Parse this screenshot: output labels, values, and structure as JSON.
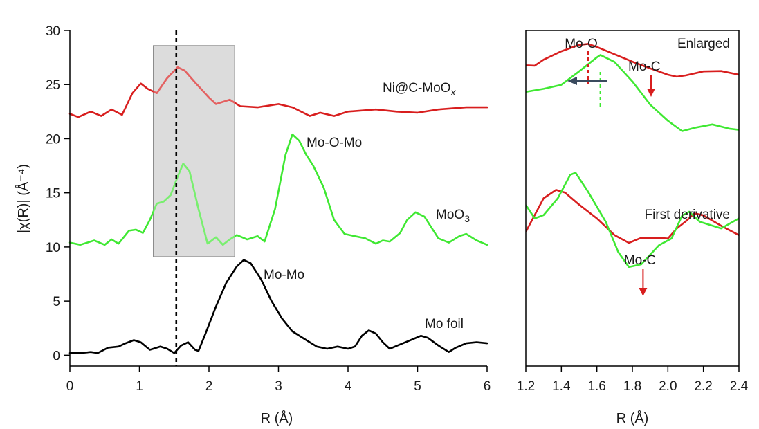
{
  "colors": {
    "red": "#d81e1e",
    "green": "#3fe832",
    "black": "#000000",
    "arrow_blue": "#3a4a5e",
    "shade_fill": "#dcdcdc",
    "shade_stroke": "#8c8c8c"
  },
  "chart_data": [
    {
      "type": "line",
      "panel": "left",
      "xlabel": "R (Å)",
      "ylabel": "|χ(R)| (Å⁻⁴)",
      "xlim": [
        0,
        6
      ],
      "ylim": [
        -1,
        30
      ],
      "xticks": [
        "0",
        "1",
        "2",
        "3",
        "4",
        "5",
        "6"
      ],
      "yticks": [
        "0",
        "5",
        "10",
        "15",
        "20",
        "25",
        "30"
      ],
      "reference_line_x": 1.53,
      "shaded_region": {
        "x": [
          1.2,
          2.37
        ],
        "y": [
          9.1,
          28.6
        ]
      },
      "series": [
        {
          "name": "Ni@C-MoOₓ",
          "color": "red",
          "points": [
            [
              0,
              22.3
            ],
            [
              0.12,
              22.0
            ],
            [
              0.3,
              22.5
            ],
            [
              0.45,
              22.1
            ],
            [
              0.6,
              22.7
            ],
            [
              0.75,
              22.2
            ],
            [
              0.9,
              24.2
            ],
            [
              1.02,
              25.1
            ],
            [
              1.12,
              24.6
            ],
            [
              1.25,
              24.2
            ],
            [
              1.4,
              25.6
            ],
            [
              1.55,
              26.6
            ],
            [
              1.65,
              26.3
            ],
            [
              1.8,
              25.2
            ],
            [
              2.0,
              23.8
            ],
            [
              2.1,
              23.2
            ],
            [
              2.3,
              23.6
            ],
            [
              2.45,
              23.0
            ],
            [
              2.7,
              22.9
            ],
            [
              3.0,
              23.2
            ],
            [
              3.2,
              22.9
            ],
            [
              3.45,
              22.1
            ],
            [
              3.6,
              22.4
            ],
            [
              3.8,
              22.1
            ],
            [
              4.0,
              22.5
            ],
            [
              4.4,
              22.7
            ],
            [
              4.7,
              22.5
            ],
            [
              5.0,
              22.4
            ],
            [
              5.3,
              22.7
            ],
            [
              5.7,
              22.9
            ],
            [
              6.0,
              22.9
            ]
          ]
        },
        {
          "name": "MoO₃",
          "color": "green",
          "points": [
            [
              0,
              10.4
            ],
            [
              0.15,
              10.2
            ],
            [
              0.35,
              10.6
            ],
            [
              0.5,
              10.2
            ],
            [
              0.6,
              10.7
            ],
            [
              0.7,
              10.3
            ],
            [
              0.85,
              11.5
            ],
            [
              0.95,
              11.6
            ],
            [
              1.05,
              11.3
            ],
            [
              1.15,
              12.5
            ],
            [
              1.25,
              14.0
            ],
            [
              1.35,
              14.2
            ],
            [
              1.45,
              14.8
            ],
            [
              1.55,
              16.5
            ],
            [
              1.63,
              17.7
            ],
            [
              1.72,
              17.0
            ],
            [
              1.85,
              13.5
            ],
            [
              1.98,
              10.3
            ],
            [
              2.1,
              10.9
            ],
            [
              2.2,
              10.2
            ],
            [
              2.3,
              10.7
            ],
            [
              2.4,
              11.1
            ],
            [
              2.55,
              10.7
            ],
            [
              2.7,
              11.0
            ],
            [
              2.8,
              10.5
            ],
            [
              2.95,
              13.5
            ],
            [
              3.1,
              18.5
            ],
            [
              3.2,
              20.4
            ],
            [
              3.3,
              19.8
            ],
            [
              3.4,
              18.5
            ],
            [
              3.5,
              17.5
            ],
            [
              3.65,
              15.5
            ],
            [
              3.8,
              12.5
            ],
            [
              3.95,
              11.2
            ],
            [
              4.1,
              11.0
            ],
            [
              4.25,
              10.8
            ],
            [
              4.4,
              10.3
            ],
            [
              4.5,
              10.6
            ],
            [
              4.6,
              10.5
            ],
            [
              4.75,
              11.3
            ],
            [
              4.85,
              12.5
            ],
            [
              4.97,
              13.2
            ],
            [
              5.1,
              12.8
            ],
            [
              5.3,
              10.8
            ],
            [
              5.45,
              10.4
            ],
            [
              5.6,
              11.0
            ],
            [
              5.7,
              11.2
            ],
            [
              5.85,
              10.6
            ],
            [
              6.0,
              10.2
            ]
          ]
        },
        {
          "name": "Mo foil",
          "color": "black",
          "points": [
            [
              0,
              0.2
            ],
            [
              0.15,
              0.2
            ],
            [
              0.3,
              0.3
            ],
            [
              0.4,
              0.2
            ],
            [
              0.55,
              0.7
            ],
            [
              0.7,
              0.8
            ],
            [
              0.8,
              1.1
            ],
            [
              0.92,
              1.4
            ],
            [
              1.02,
              1.2
            ],
            [
              1.15,
              0.5
            ],
            [
              1.2,
              0.6
            ],
            [
              1.3,
              0.8
            ],
            [
              1.4,
              0.6
            ],
            [
              1.5,
              0.2
            ],
            [
              1.6,
              0.9
            ],
            [
              1.7,
              1.2
            ],
            [
              1.8,
              0.5
            ],
            [
              1.85,
              0.4
            ],
            [
              1.95,
              2.0
            ],
            [
              2.1,
              4.5
            ],
            [
              2.25,
              6.7
            ],
            [
              2.4,
              8.2
            ],
            [
              2.5,
              8.8
            ],
            [
              2.6,
              8.5
            ],
            [
              2.75,
              7.0
            ],
            [
              2.9,
              5.0
            ],
            [
              3.05,
              3.4
            ],
            [
              3.2,
              2.2
            ],
            [
              3.4,
              1.4
            ],
            [
              3.55,
              0.8
            ],
            [
              3.7,
              0.6
            ],
            [
              3.85,
              0.8
            ],
            [
              4.0,
              0.6
            ],
            [
              4.1,
              0.8
            ],
            [
              4.2,
              1.8
            ],
            [
              4.3,
              2.3
            ],
            [
              4.4,
              2.0
            ],
            [
              4.5,
              1.2
            ],
            [
              4.6,
              0.6
            ],
            [
              4.75,
              1.0
            ],
            [
              4.9,
              1.4
            ],
            [
              5.05,
              1.8
            ],
            [
              5.15,
              1.6
            ],
            [
              5.3,
              0.9
            ],
            [
              5.45,
              0.3
            ],
            [
              5.55,
              0.7
            ],
            [
              5.7,
              1.1
            ],
            [
              5.85,
              1.2
            ],
            [
              6.0,
              1.1
            ]
          ]
        }
      ],
      "annotations": [
        {
          "text": "Ni@C-MoO",
          "sub": "x",
          "anchor_series": "Ni@C-MoOₓ"
        },
        {
          "text": "Mo-O-Mo"
        },
        {
          "text": "MoO",
          "sub": "3"
        },
        {
          "text": "Mo-Mo"
        },
        {
          "text": "Mo foil"
        }
      ]
    },
    {
      "type": "line",
      "panel": "right",
      "xlabel": "R (Å)",
      "xlim": [
        1.2,
        2.4
      ],
      "xticks": [
        "1.2",
        "1.4",
        "1.6",
        "1.8",
        "2.0",
        "2.2",
        "2.4"
      ],
      "ylim": [
        0,
        1
      ],
      "y_axis_labels": "none",
      "enlarged": {
        "label": "Enlarged",
        "series": [
          {
            "color": "red",
            "points": [
              [
                1.2,
                0.896
              ],
              [
                1.25,
                0.895
              ],
              [
                1.3,
                0.913
              ],
              [
                1.4,
                0.938
              ],
              [
                1.5,
                0.957
              ],
              [
                1.55,
                0.96
              ],
              [
                1.6,
                0.951
              ],
              [
                1.7,
                0.929
              ],
              [
                1.8,
                0.907
              ],
              [
                1.9,
                0.887
              ],
              [
                2.0,
                0.868
              ],
              [
                2.05,
                0.862
              ],
              [
                2.1,
                0.866
              ],
              [
                2.2,
                0.878
              ],
              [
                2.3,
                0.879
              ],
              [
                2.4,
                0.868
              ]
            ]
          },
          {
            "color": "green",
            "points": [
              [
                1.2,
                0.817
              ],
              [
                1.3,
                0.826
              ],
              [
                1.4,
                0.838
              ],
              [
                1.5,
                0.878
              ],
              [
                1.6,
                0.92
              ],
              [
                1.62,
                0.927
              ],
              [
                1.7,
                0.906
              ],
              [
                1.8,
                0.848
              ],
              [
                1.9,
                0.779
              ],
              [
                2.0,
                0.731
              ],
              [
                2.08,
                0.7
              ],
              [
                2.15,
                0.71
              ],
              [
                2.25,
                0.72
              ],
              [
                2.35,
                0.707
              ],
              [
                2.4,
                0.704
              ]
            ]
          }
        ],
        "markers": [
          {
            "label": "Mo-O",
            "x": 1.55,
            "color": "red"
          },
          {
            "x": 1.62,
            "color": "green"
          }
        ],
        "arrow_shift": {
          "from_x": 1.62,
          "to_x": 1.55
        },
        "mo_c_label": "Mo-C"
      },
      "first_derivative": {
        "label": "First derivative",
        "series": [
          {
            "color": "red",
            "points": [
              [
                1.2,
                0.4
              ],
              [
                1.25,
                0.45
              ],
              [
                1.3,
                0.5
              ],
              [
                1.37,
                0.525
              ],
              [
                1.42,
                0.517
              ],
              [
                1.5,
                0.481
              ],
              [
                1.6,
                0.44
              ],
              [
                1.7,
                0.39
              ],
              [
                1.78,
                0.367
              ],
              [
                1.85,
                0.382
              ],
              [
                1.95,
                0.382
              ],
              [
                2.0,
                0.38
              ],
              [
                2.05,
                0.41
              ],
              [
                2.1,
                0.431
              ],
              [
                2.15,
                0.455
              ],
              [
                2.2,
                0.449
              ],
              [
                2.3,
                0.418
              ],
              [
                2.4,
                0.39
              ]
            ]
          },
          {
            "color": "green",
            "points": [
              [
                1.2,
                0.48
              ],
              [
                1.25,
                0.44
              ],
              [
                1.3,
                0.45
              ],
              [
                1.38,
                0.5
              ],
              [
                1.45,
                0.57
              ],
              [
                1.48,
                0.576
              ],
              [
                1.55,
                0.52
              ],
              [
                1.65,
                0.43
              ],
              [
                1.72,
                0.34
              ],
              [
                1.78,
                0.295
              ],
              [
                1.85,
                0.303
              ],
              [
                1.95,
                0.36
              ],
              [
                2.02,
                0.38
              ],
              [
                2.08,
                0.448
              ],
              [
                2.12,
                0.46
              ],
              [
                2.18,
                0.43
              ],
              [
                2.3,
                0.41
              ],
              [
                2.4,
                0.44
              ]
            ]
          }
        ],
        "mo_c_label": "Mo-C",
        "mo_c_x": 1.86
      }
    }
  ]
}
